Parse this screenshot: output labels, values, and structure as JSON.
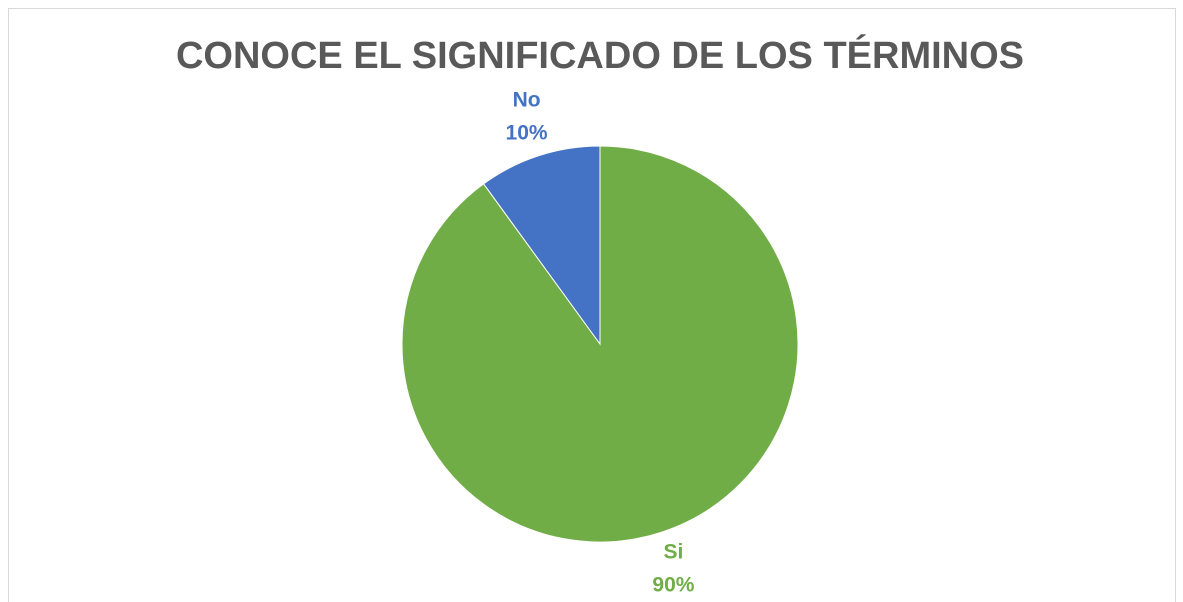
{
  "chart_data": {
    "type": "pie",
    "title": "CONOCE EL SIGNIFICADO DE LOS TÉRMINOS",
    "categories": [
      "Si",
      "No"
    ],
    "values": [
      90,
      10
    ],
    "value_labels": [
      "90%",
      "10%"
    ],
    "colors": [
      "#70ad47",
      "#4472c4"
    ]
  }
}
